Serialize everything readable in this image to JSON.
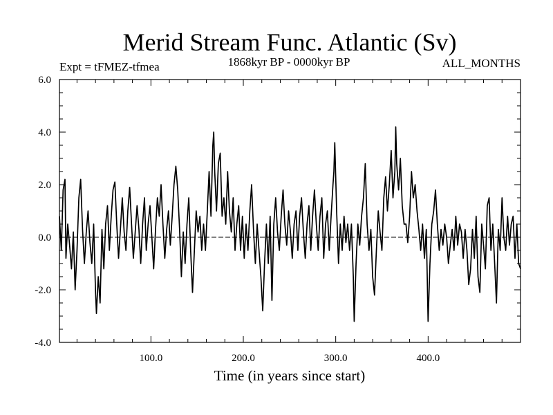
{
  "chart_data": {
    "type": "line",
    "title": "Merid Stream Func. Atlantic (Sv)",
    "subtitle_left": "Expt = tFMEZ-tfmea",
    "subtitle_center": "1868kyr BP - 0000kyr BP",
    "subtitle_right": "ALL_MONTHS",
    "xlabel": "Time (in years since start)",
    "ylabel": "",
    "xlim": [
      1,
      500
    ],
    "ylim": [
      -4.0,
      6.0
    ],
    "xticks": [
      100,
      200,
      300,
      400
    ],
    "xtick_labels": [
      "100.0",
      "200.0",
      "300.0",
      "400.0"
    ],
    "yticks": [
      -4,
      -2,
      0,
      2,
      4,
      6
    ],
    "ytick_labels": [
      "-4.0",
      "-2.0",
      "0.0",
      "2.0",
      "4.0",
      "6.0"
    ],
    "zero_line": true,
    "anchors": [
      [
        1,
        0.8
      ],
      [
        3,
        -0.5
      ],
      [
        5,
        1.8
      ],
      [
        7,
        2.2
      ],
      [
        8,
        -0.8
      ],
      [
        10,
        0.5
      ],
      [
        12,
        -0.3
      ],
      [
        14,
        -1.2
      ],
      [
        16,
        0.2
      ],
      [
        18,
        -2.0
      ],
      [
        20,
        -0.5
      ],
      [
        22,
        1.5
      ],
      [
        24,
        2.2
      ],
      [
        26,
        0.3
      ],
      [
        28,
        -1.0
      ],
      [
        30,
        0.2
      ],
      [
        32,
        1.0
      ],
      [
        34,
        -0.2
      ],
      [
        36,
        -1.0
      ],
      [
        38,
        0.5
      ],
      [
        40,
        -2.0
      ],
      [
        41,
        -2.9
      ],
      [
        43,
        -1.5
      ],
      [
        45,
        -2.5
      ],
      [
        47,
        0.3
      ],
      [
        49,
        -1.2
      ],
      [
        51,
        0.5
      ],
      [
        53,
        1.2
      ],
      [
        55,
        -0.5
      ],
      [
        57,
        0.8
      ],
      [
        59,
        1.8
      ],
      [
        61,
        2.1
      ],
      [
        63,
        0.5
      ],
      [
        65,
        -0.8
      ],
      [
        67,
        0.3
      ],
      [
        69,
        1.5
      ],
      [
        71,
        0.2
      ],
      [
        73,
        -0.5
      ],
      [
        75,
        1.0
      ],
      [
        77,
        1.9
      ],
      [
        79,
        0.5
      ],
      [
        81,
        -0.8
      ],
      [
        83,
        0.2
      ],
      [
        85,
        1.2
      ],
      [
        87,
        0.3
      ],
      [
        89,
        -1.0
      ],
      [
        91,
        0.5
      ],
      [
        93,
        1.5
      ],
      [
        95,
        -0.5
      ],
      [
        97,
        0.5
      ],
      [
        99,
        1.2
      ],
      [
        101,
        0.0
      ],
      [
        103,
        -1.2
      ],
      [
        105,
        0.3
      ],
      [
        107,
        1.5
      ],
      [
        109,
        0.8
      ],
      [
        111,
        2.0
      ],
      [
        113,
        0.5
      ],
      [
        115,
        -0.8
      ],
      [
        117,
        0.3
      ],
      [
        119,
        1.0
      ],
      [
        121,
        -0.3
      ],
      [
        123,
        0.8
      ],
      [
        125,
        2.0
      ],
      [
        127,
        2.7
      ],
      [
        129,
        1.8
      ],
      [
        131,
        0.3
      ],
      [
        133,
        -1.5
      ],
      [
        135,
        0.2
      ],
      [
        137,
        -1.0
      ],
      [
        139,
        0.5
      ],
      [
        141,
        1.5
      ],
      [
        143,
        -0.5
      ],
      [
        145,
        -2.1
      ],
      [
        147,
        -0.5
      ],
      [
        149,
        1.0
      ],
      [
        151,
        0.2
      ],
      [
        153,
        0.8
      ],
      [
        155,
        -0.5
      ],
      [
        157,
        0.5
      ],
      [
        159,
        -0.5
      ],
      [
        161,
        1.0
      ],
      [
        163,
        2.5
      ],
      [
        165,
        0.8
      ],
      [
        167,
        3.5
      ],
      [
        168,
        4.0
      ],
      [
        169,
        2.5
      ],
      [
        171,
        1.0
      ],
      [
        173,
        2.8
      ],
      [
        175,
        3.2
      ],
      [
        177,
        0.8
      ],
      [
        179,
        1.5
      ],
      [
        181,
        0.5
      ],
      [
        183,
        2.5
      ],
      [
        185,
        1.0
      ],
      [
        187,
        0.2
      ],
      [
        189,
        1.5
      ],
      [
        191,
        -0.5
      ],
      [
        193,
        0.5
      ],
      [
        195,
        1.2
      ],
      [
        197,
        -0.5
      ],
      [
        199,
        0.8
      ],
      [
        201,
        -0.8
      ],
      [
        203,
        0.5
      ],
      [
        205,
        -0.5
      ],
      [
        207,
        1.0
      ],
      [
        209,
        2.0
      ],
      [
        211,
        0.3
      ],
      [
        213,
        -1.0
      ],
      [
        215,
        0.5
      ],
      [
        217,
        -0.5
      ],
      [
        219,
        -1.5
      ],
      [
        221,
        -2.8
      ],
      [
        223,
        -1.0
      ],
      [
        225,
        0.5
      ],
      [
        227,
        -1.0
      ],
      [
        229,
        0.8
      ],
      [
        231,
        -2.4
      ],
      [
        233,
        0.5
      ],
      [
        235,
        1.5
      ],
      [
        237,
        0.2
      ],
      [
        239,
        -0.5
      ],
      [
        241,
        0.8
      ],
      [
        243,
        1.8
      ],
      [
        245,
        0.5
      ],
      [
        247,
        -0.3
      ],
      [
        249,
        1.0
      ],
      [
        251,
        0.2
      ],
      [
        253,
        -0.8
      ],
      [
        255,
        0.5
      ],
      [
        257,
        1.0
      ],
      [
        259,
        -0.5
      ],
      [
        261,
        0.8
      ],
      [
        263,
        1.5
      ],
      [
        265,
        0.2
      ],
      [
        267,
        -0.8
      ],
      [
        269,
        0.5
      ],
      [
        271,
        1.2
      ],
      [
        273,
        -0.5
      ],
      [
        275,
        0.8
      ],
      [
        277,
        1.8
      ],
      [
        279,
        0.5
      ],
      [
        281,
        -0.5
      ],
      [
        283,
        0.8
      ],
      [
        285,
        1.5
      ],
      [
        287,
        -0.8
      ],
      [
        289,
        0.5
      ],
      [
        291,
        1.0
      ],
      [
        293,
        -0.5
      ],
      [
        295,
        0.8
      ],
      [
        297,
        2.0
      ],
      [
        298,
        2.5
      ],
      [
        299,
        3.6
      ],
      [
        301,
        1.0
      ],
      [
        303,
        -1.0
      ],
      [
        305,
        0.5
      ],
      [
        307,
        -0.5
      ],
      [
        309,
        0.8
      ],
      [
        311,
        -0.2
      ],
      [
        313,
        0.5
      ],
      [
        315,
        -0.5
      ],
      [
        317,
        0.5
      ],
      [
        319,
        -1.5
      ],
      [
        320,
        -3.2
      ],
      [
        322,
        -1.0
      ],
      [
        324,
        0.5
      ],
      [
        326,
        -0.3
      ],
      [
        328,
        0.8
      ],
      [
        330,
        1.5
      ],
      [
        332,
        2.8
      ],
      [
        334,
        0.5
      ],
      [
        336,
        -0.5
      ],
      [
        338,
        0.3
      ],
      [
        340,
        -1.5
      ],
      [
        342,
        -2.2
      ],
      [
        344,
        -0.5
      ],
      [
        346,
        1.0
      ],
      [
        348,
        0.2
      ],
      [
        350,
        -0.5
      ],
      [
        352,
        1.5
      ],
      [
        354,
        2.3
      ],
      [
        356,
        1.0
      ],
      [
        358,
        2.0
      ],
      [
        360,
        3.3
      ],
      [
        362,
        1.5
      ],
      [
        364,
        2.5
      ],
      [
        365,
        4.2
      ],
      [
        366,
        2.8
      ],
      [
        368,
        1.8
      ],
      [
        370,
        3.0
      ],
      [
        372,
        1.2
      ],
      [
        374,
        0.5
      ],
      [
        376,
        0.5
      ],
      [
        378,
        -0.2
      ],
      [
        380,
        0.8
      ],
      [
        382,
        2.5
      ],
      [
        384,
        1.5
      ],
      [
        386,
        2.0
      ],
      [
        388,
        1.0
      ],
      [
        390,
        0.3
      ],
      [
        392,
        -0.5
      ],
      [
        394,
        0.5
      ],
      [
        396,
        -0.8
      ],
      [
        398,
        0.3
      ],
      [
        400,
        -3.2
      ],
      [
        402,
        -1.0
      ],
      [
        404,
        0.5
      ],
      [
        406,
        1.0
      ],
      [
        408,
        1.8
      ],
      [
        410,
        0.5
      ],
      [
        412,
        -0.5
      ],
      [
        414,
        0.3
      ],
      [
        416,
        -0.3
      ],
      [
        418,
        0.5
      ],
      [
        420,
        0.0
      ],
      [
        422,
        -1.0
      ],
      [
        424,
        -0.3
      ],
      [
        426,
        0.3
      ],
      [
        428,
        -0.5
      ],
      [
        430,
        0.8
      ],
      [
        432,
        -0.3
      ],
      [
        434,
        0.5
      ],
      [
        436,
        0.2
      ],
      [
        438,
        -0.8
      ],
      [
        440,
        0.3
      ],
      [
        442,
        -0.5
      ],
      [
        444,
        -1.8
      ],
      [
        446,
        -1.2
      ],
      [
        448,
        0.3
      ],
      [
        450,
        -0.8
      ],
      [
        452,
        0.8
      ],
      [
        454,
        -1.5
      ],
      [
        456,
        -2.1
      ],
      [
        458,
        0.5
      ],
      [
        460,
        -0.3
      ],
      [
        462,
        -1.2
      ],
      [
        464,
        1.2
      ],
      [
        466,
        1.5
      ],
      [
        468,
        -0.5
      ],
      [
        470,
        0.5
      ],
      [
        472,
        -1.0
      ],
      [
        474,
        -2.5
      ],
      [
        476,
        0.3
      ],
      [
        478,
        -0.5
      ],
      [
        480,
        1.5
      ],
      [
        482,
        0.0
      ],
      [
        484,
        -0.5
      ],
      [
        486,
        0.8
      ],
      [
        488,
        -0.3
      ],
      [
        490,
        0.5
      ],
      [
        492,
        0.8
      ],
      [
        494,
        -0.8
      ],
      [
        496,
        0.5
      ],
      [
        498,
        -1.0
      ],
      [
        500,
        -1.2
      ]
    ]
  }
}
